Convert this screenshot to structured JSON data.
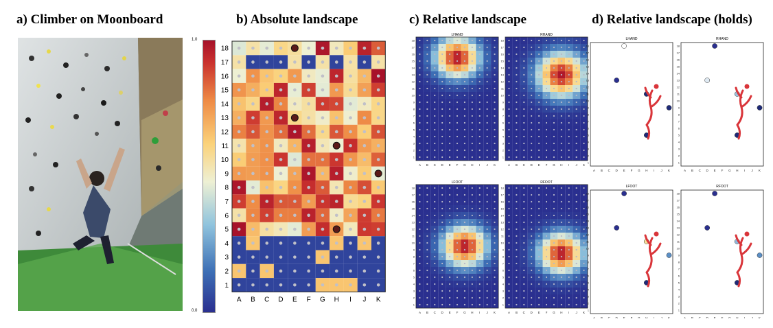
{
  "panels": {
    "a": {
      "title": "a) Climber on Moonboard"
    },
    "b": {
      "title": "b) Absolute landscape"
    },
    "c": {
      "title": "c) Relative landscape",
      "subplots": [
        "LHAND",
        "RHAND",
        "LFOOT",
        "RFOOT"
      ]
    },
    "d": {
      "title": "d) Relative landscape (holds)",
      "subplots": [
        "LHAND",
        "RHAND",
        "LFOOT",
        "RFOOT"
      ]
    }
  },
  "colorbar": {
    "max_label": "1.0",
    "min_label": "0.0"
  },
  "board": {
    "columns": [
      "A",
      "B",
      "C",
      "D",
      "E",
      "F",
      "G",
      "H",
      "I",
      "J",
      "K"
    ],
    "rows": [
      "1",
      "2",
      "3",
      "4",
      "5",
      "6",
      "7",
      "8",
      "9",
      "10",
      "11",
      "12",
      "13",
      "14",
      "15",
      "16",
      "17",
      "18"
    ]
  },
  "colors": {
    "low": "#2a2f8f",
    "mid": "#f2d16b",
    "high": "#a6112a",
    "figure": "#d9353a"
  },
  "chart_data": {
    "type": "heatmap",
    "grid": "18 rows x 11 columns",
    "scale": [
      0.0,
      1.0
    ]
  }
}
